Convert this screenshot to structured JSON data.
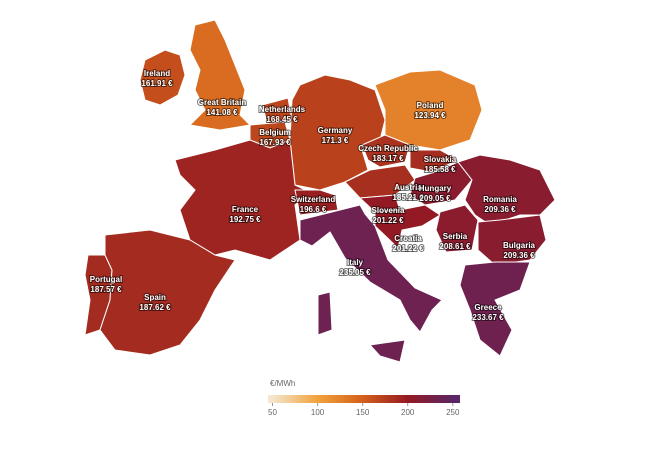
{
  "map": {
    "regions": [
      {
        "name": "Ireland",
        "value": 161.91,
        "value_label": "161.91 €"
      },
      {
        "name": "Great Britain",
        "value": 141.08,
        "value_label": "141.08 €"
      },
      {
        "name": "Netherlands",
        "value": 168.45,
        "value_label": "168.45 €"
      },
      {
        "name": "Belgium",
        "value": 167.93,
        "value_label": "167.93 €"
      },
      {
        "name": "Germany",
        "value": 171.3,
        "value_label": "171.3 €"
      },
      {
        "name": "Poland",
        "value": 123.94,
        "value_label": "123.94 €"
      },
      {
        "name": "Czech Republic",
        "value": 183.17,
        "value_label": "183.17 €"
      },
      {
        "name": "Slovakia",
        "value": 185.58,
        "value_label": "185.58 €"
      },
      {
        "name": "Austria",
        "value": 185.21,
        "value_label": "185.21 €"
      },
      {
        "name": "Hungary",
        "value": 209.05,
        "value_label": "209.05 €"
      },
      {
        "name": "Romania",
        "value": 209.36,
        "value_label": "209.36 €"
      },
      {
        "name": "France",
        "value": 192.75,
        "value_label": "192.75 €"
      },
      {
        "name": "Switzerland",
        "value": 196.6,
        "value_label": "196.6 €"
      },
      {
        "name": "Slovenia",
        "value": 201.22,
        "value_label": "201.22 €"
      },
      {
        "name": "Croatia",
        "value": 201.22,
        "value_label": "201.22 €"
      },
      {
        "name": "Serbia",
        "value": 208.61,
        "value_label": "208.61 €"
      },
      {
        "name": "Bulgaria",
        "value": 209.36,
        "value_label": "209.36 €"
      },
      {
        "name": "Italy",
        "value": 235.05,
        "value_label": "235.05 €"
      },
      {
        "name": "Portugal",
        "value": 187.57,
        "value_label": "187.57 €"
      },
      {
        "name": "Spain",
        "value": 187.62,
        "value_label": "187.62 €"
      },
      {
        "name": "Greece",
        "value": 233.67,
        "value_label": "233.67 €"
      }
    ],
    "legend": {
      "title": "€/MWh",
      "lim": [
        45,
        258
      ],
      "ticks": [
        50,
        100,
        150,
        200,
        250
      ],
      "colors": [
        "#f3e6cc",
        "#f2a23c",
        "#d4601a",
        "#941a22",
        "#5c2565"
      ]
    }
  }
}
